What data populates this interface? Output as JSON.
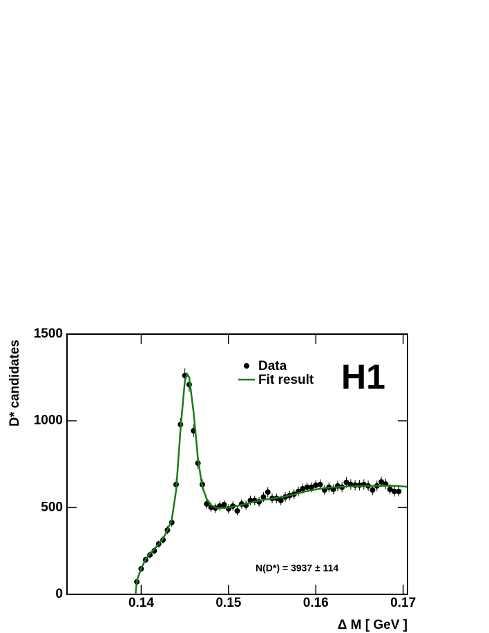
{
  "chart_data": {
    "type": "scatter",
    "xlabel": "Δ M [ GeV ]",
    "ylabel": "D* candidates",
    "annotations": [
      "H1",
      "N(D*) = 3937 ± 114"
    ],
    "xlim": [
      0.1315,
      0.1705
    ],
    "ylim": [
      0,
      1500
    ],
    "xticks": [
      0.14,
      0.15,
      0.16,
      0.17
    ],
    "yticks": [
      0,
      500,
      1000,
      1500
    ],
    "series": [
      {
        "name": "Data",
        "color": "#000000",
        "type": "scatter",
        "x": [
          0.1395,
          0.14,
          0.1405,
          0.141,
          0.1415,
          0.142,
          0.1425,
          0.143,
          0.1435,
          0.144,
          0.1445,
          0.145,
          0.1455,
          0.146,
          0.1465,
          0.147,
          0.1475,
          0.148,
          0.1485,
          0.149,
          0.1495,
          0.15,
          0.1505,
          0.151,
          0.1515,
          0.152,
          0.1525,
          0.153,
          0.1535,
          0.154,
          0.1545,
          0.155,
          0.1555,
          0.156,
          0.1565,
          0.157,
          0.1575,
          0.158,
          0.1585,
          0.159,
          0.1595,
          0.16,
          0.1605,
          0.161,
          0.1615,
          0.162,
          0.1625,
          0.163,
          0.1635,
          0.164,
          0.1645,
          0.165,
          0.1655,
          0.166,
          0.1665,
          0.167,
          0.1675,
          0.168,
          0.1685,
          0.169,
          0.1695
        ],
        "values": [
          72,
          147,
          199,
          227,
          251,
          290,
          314,
          370,
          414,
          633,
          979,
          1261,
          1209,
          943,
          756,
          633,
          521,
          501,
          497,
          509,
          517,
          493,
          509,
          481,
          521,
          513,
          541,
          541,
          533,
          561,
          589,
          553,
          553,
          541,
          561,
          569,
          577,
          593,
          609,
          617,
          617,
          629,
          633,
          601,
          617,
          605,
          625,
          617,
          645,
          633,
          629,
          629,
          633,
          625,
          601,
          625,
          648,
          636,
          605,
          593,
          593
        ],
        "errors": [
          10,
          15,
          17,
          18,
          19,
          20,
          21,
          23,
          24,
          30,
          37,
          42,
          41,
          36,
          33,
          30,
          27,
          27,
          27,
          27,
          27,
          27,
          27,
          26,
          27,
          27,
          28,
          28,
          28,
          28,
          29,
          28,
          28,
          28,
          28,
          28,
          29,
          29,
          29,
          29,
          29,
          30,
          30,
          29,
          29,
          29,
          30,
          29,
          30,
          30,
          30,
          30,
          30,
          30,
          29,
          30,
          30,
          30,
          29,
          29,
          29
        ]
      },
      {
        "name": "Fit result",
        "color": "#1a7a1a",
        "type": "line",
        "x": [
          0.13935,
          0.1395,
          0.14,
          0.1405,
          0.141,
          0.1415,
          0.142,
          0.1425,
          0.143,
          0.1435,
          0.144,
          0.1445,
          0.145,
          0.14525,
          0.1455,
          0.146,
          0.1465,
          0.147,
          0.1475,
          0.148,
          0.1485,
          0.149,
          0.15,
          0.151,
          0.152,
          0.153,
          0.154,
          0.155,
          0.156,
          0.157,
          0.158,
          0.159,
          0.16,
          0.161,
          0.162,
          0.163,
          0.164,
          0.165,
          0.166,
          0.167,
          0.168,
          0.169,
          0.1705
        ],
        "values": [
          0,
          80,
          150,
          200,
          235,
          260,
          290,
          320,
          370,
          430,
          600,
          950,
          1230,
          1270,
          1250,
          1050,
          780,
          620,
          550,
          515,
          500,
          497,
          500,
          510,
          522,
          535,
          545,
          552,
          560,
          570,
          583,
          595,
          605,
          612,
          617,
          620,
          622,
          623,
          624,
          625,
          626,
          625,
          620
        ]
      }
    ]
  }
}
